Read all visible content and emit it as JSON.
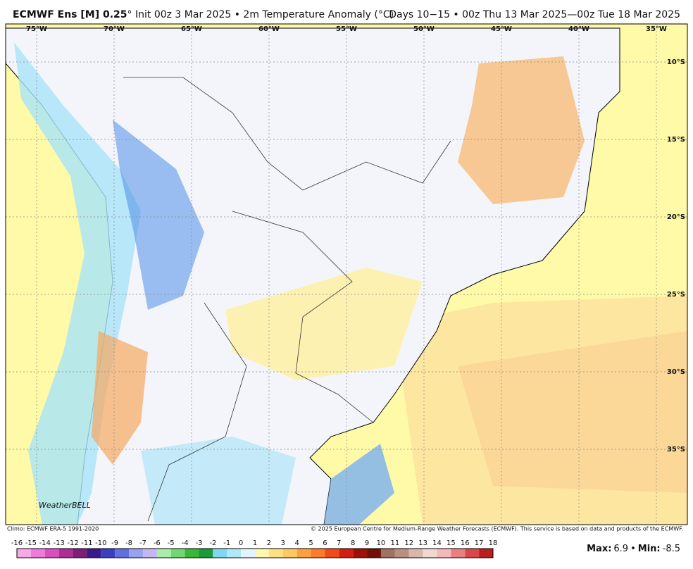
{
  "header": {
    "title_model": "ECMWF Ens [M] 0.25",
    "title_rest": "° Init 00z 3 Mar 2025 • 2m Temperature Anomaly (°C)",
    "valid": "Days 10−15 • 00z Thu 13 Mar 2025—00z Tue 18 Mar 2025"
  },
  "map": {
    "lon_labels": [
      "75°W",
      "70°W",
      "65°W",
      "60°W",
      "55°W",
      "50°W",
      "45°W",
      "40°W",
      "35°W"
    ],
    "lat_labels": [
      "10°S",
      "15°S",
      "20°S",
      "25°S",
      "30°S",
      "35°S"
    ],
    "logo": "WeatherBELL"
  },
  "footer": {
    "climo": "Climo: ECMWF ERA-5 1991-2020",
    "copyright": "© 2025 European Centre for Medium-Range Weather Forecasts (ECMWF). This service is based on data and products of the ECMWF."
  },
  "legend": {
    "ticks": [
      -16,
      -15,
      -14,
      -13,
      -12,
      -11,
      -10,
      -9,
      -8,
      -7,
      -6,
      -5,
      -4,
      -3,
      -2,
      -1,
      0,
      1,
      2,
      3,
      4,
      5,
      6,
      7,
      8,
      9,
      10,
      11,
      12,
      13,
      14,
      15,
      16,
      17,
      18
    ],
    "colors": [
      "#f7a8e8",
      "#ee7ad9",
      "#d94fc0",
      "#b02d98",
      "#7d1f78",
      "#3b1b8a",
      "#3a3fc0",
      "#6070e0",
      "#9aa0f0",
      "#c4b8f4",
      "#a8eea8",
      "#70d870",
      "#38b838",
      "#1a9a3a",
      "#80d8f0",
      "#b0e8f8",
      "#e0f6fc",
      "#fff8b0",
      "#ffe080",
      "#ffc860",
      "#ffa040",
      "#ff7a2a",
      "#f04a1a",
      "#d02010",
      "#a01008",
      "#701008",
      "#a07060",
      "#b89080",
      "#d8b8a8",
      "#f0d8d0",
      "#f4b8b8",
      "#e88080",
      "#d84848",
      "#b82020"
    ]
  },
  "stats": {
    "max_label": "Max:",
    "max": 6.9,
    "separator": "•",
    "min_label": "Min:",
    "min": -8.5
  }
}
